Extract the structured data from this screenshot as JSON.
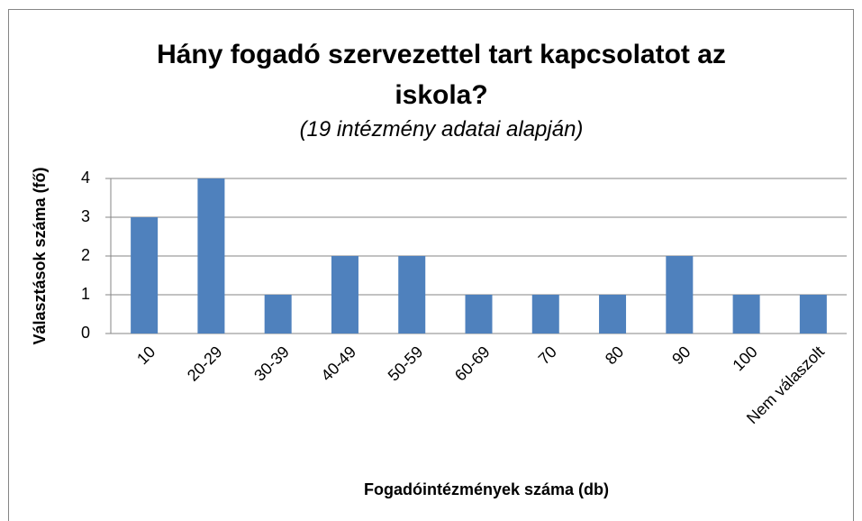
{
  "chart_data": {
    "type": "bar",
    "title": "Hány fogadó szervezettel tart kapcsolatot az iskola?",
    "subtitle": "(19 intézmény adatai alapján)",
    "x_label": "Fogadóintézmények száma (db)",
    "y_label": "Választások száma (fő)",
    "categories": [
      "10",
      "20-29",
      "30-39",
      "40-49",
      "50-59",
      "60-69",
      "70",
      "80",
      "90",
      "100",
      "Nem válaszolt"
    ],
    "values": [
      3,
      4,
      1,
      2,
      2,
      1,
      1,
      1,
      2,
      1,
      1
    ],
    "color": "#4f81bd",
    "ylim": [
      0,
      4
    ],
    "yticks": [
      0,
      1,
      2,
      3,
      4
    ],
    "grid": true
  }
}
